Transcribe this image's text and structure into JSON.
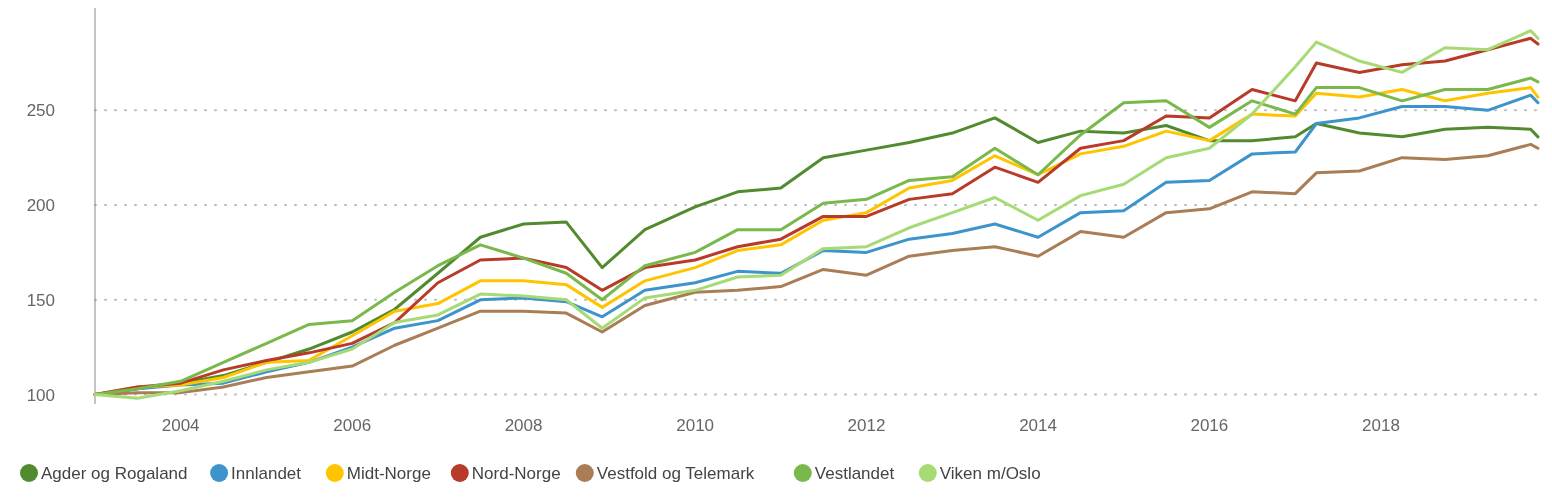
{
  "chart_data": {
    "type": "line",
    "x": [
      "2003-01",
      "2003-07",
      "2004-01",
      "2004-07",
      "2005-01",
      "2005-07",
      "2006-01",
      "2006-07",
      "2007-01",
      "2007-07",
      "2008-01",
      "2008-07",
      "2008-12",
      "2009-06",
      "2010-01",
      "2010-07",
      "2011-01",
      "2011-07",
      "2012-01",
      "2012-07",
      "2013-01",
      "2013-07",
      "2014-01",
      "2014-07",
      "2015-01",
      "2015-07",
      "2016-01",
      "2016-07",
      "2017-01",
      "2017-04",
      "2017-10",
      "2018-04",
      "2018-10",
      "2019-04",
      "2019-10",
      "2019-11"
    ],
    "series": [
      {
        "name": "Agder og Rogaland",
        "color": "#528a2f",
        "values": [
          100,
          103,
          106,
          110,
          117,
          124,
          133,
          145,
          164,
          183,
          190,
          191,
          167,
          187,
          199,
          207,
          209,
          225,
          229,
          233,
          238,
          246,
          233,
          239,
          238,
          242,
          234,
          234,
          236,
          243,
          238,
          236,
          240,
          241,
          240,
          236
        ]
      },
      {
        "name": "Innlandet",
        "color": "#3d94cd",
        "values": [
          100,
          103,
          105,
          106,
          112,
          117,
          125,
          135,
          139,
          150,
          151,
          149,
          141,
          155,
          159,
          165,
          164,
          176,
          175,
          182,
          185,
          190,
          183,
          196,
          197,
          212,
          213,
          227,
          228,
          243,
          246,
          252,
          252,
          250,
          258,
          254
        ]
      },
      {
        "name": "Midt-Norge",
        "color": "#ffc400",
        "values": [
          100,
          104,
          105,
          109,
          117,
          118,
          131,
          144,
          148,
          160,
          160,
          158,
          146,
          160,
          167,
          176,
          179,
          192,
          196,
          209,
          213,
          226,
          216,
          227,
          231,
          239,
          234,
          248,
          247,
          259,
          257,
          261,
          255,
          259,
          262,
          257
        ]
      },
      {
        "name": "Nord-Norge",
        "color": "#b83a28",
        "values": [
          100,
          104,
          106,
          113,
          118,
          122,
          127,
          138,
          159,
          171,
          172,
          167,
          155,
          167,
          171,
          178,
          182,
          194,
          194,
          203,
          206,
          220,
          212,
          230,
          234,
          247,
          246,
          261,
          255,
          275,
          270,
          274,
          276,
          282,
          288,
          285
        ]
      },
      {
        "name": "Vestfold og Telemark",
        "color": "#a97d55",
        "values": [
          100,
          101,
          101,
          104,
          109,
          112,
          115,
          126,
          135,
          144,
          144,
          143,
          133,
          147,
          154,
          155,
          157,
          166,
          163,
          173,
          176,
          178,
          173,
          186,
          183,
          196,
          198,
          207,
          206,
          217,
          218,
          225,
          224,
          226,
          232,
          230
        ]
      },
      {
        "name": "Vestlandet",
        "color": "#79b84b",
        "values": [
          100,
          103,
          107,
          117,
          127,
          137,
          139,
          154,
          168,
          179,
          172,
          164,
          150,
          168,
          175,
          187,
          187,
          201,
          203,
          213,
          215,
          230,
          216,
          237,
          254,
          255,
          241,
          255,
          248,
          262,
          262,
          255,
          261,
          261,
          267,
          265
        ]
      },
      {
        "name": "Viken m/Oslo",
        "color": "#a6da74",
        "values": [
          100,
          98,
          102,
          107,
          113,
          117,
          124,
          138,
          142,
          153,
          152,
          150,
          135,
          151,
          155,
          162,
          163,
          177,
          178,
          188,
          196,
          204,
          192,
          205,
          211,
          225,
          230,
          248,
          273,
          286,
          276,
          270,
          283,
          282,
          292,
          288
        ]
      }
    ],
    "xlim": [
      "2003-01",
      "2019-12"
    ],
    "xticks": [
      "2004",
      "2006",
      "2008",
      "2010",
      "2012",
      "2014",
      "2016",
      "2018"
    ],
    "ylim": [
      95,
      304
    ],
    "yticks": [
      100,
      150,
      200,
      250
    ],
    "grid": "y",
    "legend": "bottom",
    "marker": "none",
    "line_style": "solid"
  }
}
